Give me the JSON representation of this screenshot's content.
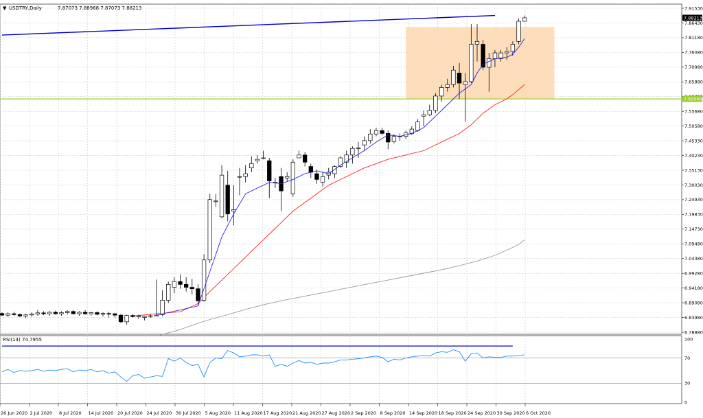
{
  "chart_data": [
    {
      "type": "candlestick",
      "header": {
        "symbol_line": "USDTRY,Daily",
        "ohlc": "7.87073 7.88968 7.87073 7.88213"
      },
      "price_labels": [
        "7.91530",
        "7.86430",
        "7.81180",
        "7.76080",
        "7.70980",
        "7.65880",
        "7.60780",
        "7.55680",
        "7.50580",
        "7.45330",
        "7.40230",
        "7.35130",
        "7.30030",
        "7.24930",
        "7.19830",
        "7.14730",
        "7.09480",
        "7.04380",
        "6.99280",
        "6.94180",
        "6.89080",
        "6.83980",
        "6.78880"
      ],
      "current_price_label": "7.88213",
      "level_label": "7.60000",
      "ylim": [
        6.7888,
        7.9153
      ],
      "date_labels": [
        "26 Jun 2020",
        "2 Jul 2020",
        "8 Jul 2020",
        "14 Jul 2020",
        "20 Jul 2020",
        "24 Jul 2020",
        "30 Jul 2020",
        "5 Aug 2020",
        "11 Aug 2020",
        "17 Aug 2020",
        "21 Aug 2020",
        "27 Aug 2020",
        "2 Sep 2020",
        "8 Sep 2020",
        "14 Sep 2020",
        "18 Sep 2020",
        "24 Sep 2020",
        "30 Sep 2020",
        "6 Oct 2020"
      ],
      "candles": [
        [
          6.854,
          6.858,
          6.846,
          6.848
        ],
        [
          6.848,
          6.858,
          6.842,
          6.853
        ],
        [
          6.853,
          6.86,
          6.846,
          6.85
        ],
        [
          6.85,
          6.854,
          6.842,
          6.845
        ],
        [
          6.845,
          6.852,
          6.838,
          6.849
        ],
        [
          6.849,
          6.858,
          6.843,
          6.852
        ],
        [
          6.852,
          6.866,
          6.846,
          6.856
        ],
        [
          6.856,
          6.862,
          6.848,
          6.853
        ],
        [
          6.853,
          6.862,
          6.846,
          6.858
        ],
        [
          6.858,
          6.864,
          6.85,
          6.853
        ],
        [
          6.853,
          6.862,
          6.846,
          6.857
        ],
        [
          6.857,
          6.866,
          6.85,
          6.861
        ],
        [
          6.861,
          6.866,
          6.85,
          6.853
        ],
        [
          6.853,
          6.862,
          6.846,
          6.858
        ],
        [
          6.858,
          6.866,
          6.85,
          6.853
        ],
        [
          6.853,
          6.86,
          6.846,
          6.857
        ],
        [
          6.857,
          6.862,
          6.848,
          6.851
        ],
        [
          6.851,
          6.858,
          6.844,
          6.854
        ],
        [
          6.854,
          6.86,
          6.84,
          6.853
        ],
        [
          6.853,
          6.856,
          6.84,
          6.848
        ],
        [
          6.848,
          6.852,
          6.82,
          6.825
        ],
        [
          6.825,
          6.85,
          6.815,
          6.847
        ],
        [
          6.847,
          6.852,
          6.84,
          6.843
        ],
        [
          6.843,
          6.85,
          6.834,
          6.846
        ],
        [
          6.84,
          6.846,
          6.83,
          6.844
        ],
        [
          6.844,
          6.852,
          6.838,
          6.846
        ],
        [
          6.846,
          6.972,
          6.845,
          6.848
        ],
        [
          6.85,
          6.935,
          6.845,
          6.9
        ],
        [
          6.9,
          6.965,
          6.89,
          6.955
        ],
        [
          6.945,
          6.98,
          6.925,
          6.965
        ],
        [
          6.965,
          6.99,
          6.94,
          6.955
        ],
        [
          6.955,
          6.98,
          6.93,
          6.945
        ],
        [
          6.945,
          6.975,
          6.92,
          6.94
        ],
        [
          6.94,
          6.955,
          6.88,
          6.898
        ],
        [
          6.9,
          7.06,
          6.895,
          7.04
        ],
        [
          7.04,
          7.27,
          7.03,
          7.25
        ],
        [
          7.245,
          7.27,
          7.225,
          7.245
        ],
        [
          7.19,
          7.37,
          7.185,
          7.335
        ],
        [
          7.3,
          7.35,
          7.175,
          7.2
        ],
        [
          7.21,
          7.3,
          7.16,
          7.215
        ],
        [
          7.33,
          7.36,
          7.265,
          7.33
        ],
        [
          7.33,
          7.37,
          7.31,
          7.34
        ],
        [
          7.36,
          7.4,
          7.345,
          7.375
        ],
        [
          7.385,
          7.405,
          7.375,
          7.39
        ],
        [
          7.395,
          7.42,
          7.39,
          7.395
        ],
        [
          7.385,
          7.395,
          7.255,
          7.315
        ],
        [
          7.31,
          7.325,
          7.29,
          7.31
        ],
        [
          7.33,
          7.36,
          7.21,
          7.28
        ],
        [
          7.325,
          7.345,
          7.315,
          7.33
        ],
        [
          7.27,
          7.39,
          7.26,
          7.38
        ],
        [
          7.395,
          7.42,
          7.395,
          7.405
        ],
        [
          7.405,
          7.415,
          7.365,
          7.38
        ],
        [
          7.365,
          7.375,
          7.325,
          7.345
        ],
        [
          7.34,
          7.355,
          7.305,
          7.32
        ],
        [
          7.31,
          7.345,
          7.295,
          7.33
        ],
        [
          7.335,
          7.36,
          7.32,
          7.345
        ],
        [
          7.34,
          7.37,
          7.325,
          7.365
        ],
        [
          7.365,
          7.4,
          7.36,
          7.395
        ],
        [
          7.38,
          7.42,
          7.36,
          7.405
        ],
        [
          7.405,
          7.435,
          7.375,
          7.428
        ],
        [
          7.43,
          7.45,
          7.395,
          7.43
        ],
        [
          7.44,
          7.47,
          7.42,
          7.455
        ],
        [
          7.455,
          7.495,
          7.445,
          7.478
        ],
        [
          7.478,
          7.5,
          7.47,
          7.49
        ],
        [
          7.49,
          7.5,
          7.475,
          7.48
        ],
        [
          7.48,
          7.49,
          7.425,
          7.45
        ],
        [
          7.452,
          7.478,
          7.445,
          7.47
        ],
        [
          7.47,
          7.48,
          7.455,
          7.47
        ],
        [
          7.47,
          7.49,
          7.46,
          7.482
        ],
        [
          7.48,
          7.505,
          7.475,
          7.495
        ],
        [
          7.49,
          7.53,
          7.485,
          7.52
        ],
        [
          7.54,
          7.56,
          7.505,
          7.545
        ],
        [
          7.545,
          7.58,
          7.54,
          7.56
        ],
        [
          7.56,
          7.62,
          7.55,
          7.61
        ],
        [
          7.61,
          7.65,
          7.59,
          7.64
        ],
        [
          7.64,
          7.67,
          7.625,
          7.65
        ],
        [
          7.65,
          7.715,
          7.64,
          7.7
        ],
        [
          7.69,
          7.725,
          7.6,
          7.655
        ],
        [
          7.65,
          7.69,
          7.52,
          7.66
        ],
        [
          7.66,
          7.86,
          7.655,
          7.79
        ],
        [
          7.79,
          7.86,
          7.73,
          7.8
        ],
        [
          7.79,
          7.805,
          7.7,
          7.71
        ],
        [
          7.71,
          7.76,
          7.625,
          7.74
        ],
        [
          7.74,
          7.77,
          7.71,
          7.76
        ],
        [
          7.74,
          7.77,
          7.73,
          7.76
        ],
        [
          7.76,
          7.78,
          7.735,
          7.765
        ],
        [
          7.765,
          7.8,
          7.75,
          7.79
        ],
        [
          7.8,
          7.88,
          7.79,
          7.87
        ],
        [
          7.87,
          7.89,
          7.87,
          7.882
        ]
      ],
      "indicators": {
        "ma_fast": [
          [
            26,
            6.848
          ],
          [
            33,
            6.88
          ],
          [
            35,
            7.0
          ],
          [
            37,
            7.12
          ],
          [
            39,
            7.2
          ],
          [
            41,
            7.27
          ],
          [
            45,
            7.31
          ],
          [
            47,
            7.305
          ],
          [
            49,
            7.32
          ],
          [
            51,
            7.34
          ],
          [
            53,
            7.35
          ],
          [
            55,
            7.34
          ],
          [
            57,
            7.37
          ],
          [
            59,
            7.395
          ],
          [
            61,
            7.42
          ],
          [
            63,
            7.45
          ],
          [
            65,
            7.475
          ],
          [
            67,
            7.47
          ],
          [
            69,
            7.48
          ],
          [
            71,
            7.5
          ],
          [
            73,
            7.54
          ],
          [
            75,
            7.58
          ],
          [
            77,
            7.62
          ],
          [
            79,
            7.65
          ],
          [
            80,
            7.69
          ],
          [
            81,
            7.72
          ],
          [
            83,
            7.74
          ],
          [
            85,
            7.745
          ],
          [
            86,
            7.755
          ],
          [
            87,
            7.78
          ],
          [
            88,
            7.81
          ]
        ],
        "ma_mid": [
          [
            22,
            6.845
          ],
          [
            26,
            6.853
          ],
          [
            30,
            6.86
          ],
          [
            33,
            6.888
          ],
          [
            35,
            6.93
          ],
          [
            37,
            6.97
          ],
          [
            39,
            7.01
          ],
          [
            41,
            7.05
          ],
          [
            43,
            7.09
          ],
          [
            45,
            7.13
          ],
          [
            47,
            7.17
          ],
          [
            49,
            7.21
          ],
          [
            51,
            7.24
          ],
          [
            53,
            7.27
          ],
          [
            55,
            7.3
          ],
          [
            57,
            7.32
          ],
          [
            59,
            7.34
          ],
          [
            61,
            7.36
          ],
          [
            63,
            7.375
          ],
          [
            65,
            7.39
          ],
          [
            67,
            7.4
          ],
          [
            69,
            7.41
          ],
          [
            71,
            7.42
          ],
          [
            73,
            7.44
          ],
          [
            75,
            7.46
          ],
          [
            77,
            7.48
          ],
          [
            79,
            7.51
          ],
          [
            81,
            7.55
          ],
          [
            83,
            7.58
          ],
          [
            85,
            7.6
          ],
          [
            86,
            7.615
          ],
          [
            88,
            7.65
          ]
        ],
        "ma_slow": [
          [
            26,
            6.775
          ],
          [
            30,
            6.798
          ],
          [
            33,
            6.82
          ],
          [
            35,
            6.833
          ],
          [
            38,
            6.85
          ],
          [
            41,
            6.868
          ],
          [
            44,
            6.884
          ],
          [
            47,
            6.898
          ],
          [
            50,
            6.91
          ],
          [
            53,
            6.922
          ],
          [
            56,
            6.934
          ],
          [
            59,
            6.946
          ],
          [
            62,
            6.958
          ],
          [
            65,
            6.97
          ],
          [
            68,
            6.982
          ],
          [
            71,
            6.994
          ],
          [
            74,
            7.006
          ],
          [
            77,
            7.02
          ],
          [
            80,
            7.036
          ],
          [
            83,
            7.056
          ],
          [
            85,
            7.074
          ],
          [
            87,
            7.094
          ],
          [
            88,
            7.11
          ]
        ]
      },
      "drawings": {
        "trend_line": [
          [
            0,
            7.822
          ],
          [
            83,
            7.89
          ]
        ],
        "horizontal_level": 7.6,
        "highlight_zone": {
          "x_from": 68,
          "x_to": 93,
          "y_from": 7.6,
          "y_to": 7.85
        }
      }
    },
    {
      "type": "line",
      "title": "RSI(14) 74.7955",
      "ylim": [
        0,
        100
      ],
      "levels": [
        "100",
        "70",
        "30",
        "0"
      ],
      "series": [
        {
          "values": [
            48,
            52,
            47,
            50,
            49,
            50,
            52,
            49,
            51,
            50,
            52,
            53,
            48,
            51,
            50,
            52,
            48,
            50,
            46,
            48,
            40,
            33,
            42,
            44,
            38,
            40,
            42,
            41,
            69,
            65,
            70,
            63,
            58,
            60,
            40,
            63,
            70,
            69,
            82,
            78,
            72,
            73,
            75,
            75,
            73,
            75,
            57,
            60,
            57,
            62,
            66,
            62,
            63,
            60,
            62,
            62,
            64,
            67,
            67,
            68,
            69,
            70,
            72,
            73,
            71,
            64,
            68,
            67,
            70,
            72,
            73,
            74,
            73,
            78,
            80,
            79,
            83,
            80,
            65,
            77,
            78,
            70,
            72,
            71,
            71,
            73,
            73,
            74,
            75
          ]
        }
      ],
      "drawings": {
        "trend_line": [
          [
            0,
            89
          ],
          [
            86,
            89
          ]
        ]
      }
    }
  ]
}
